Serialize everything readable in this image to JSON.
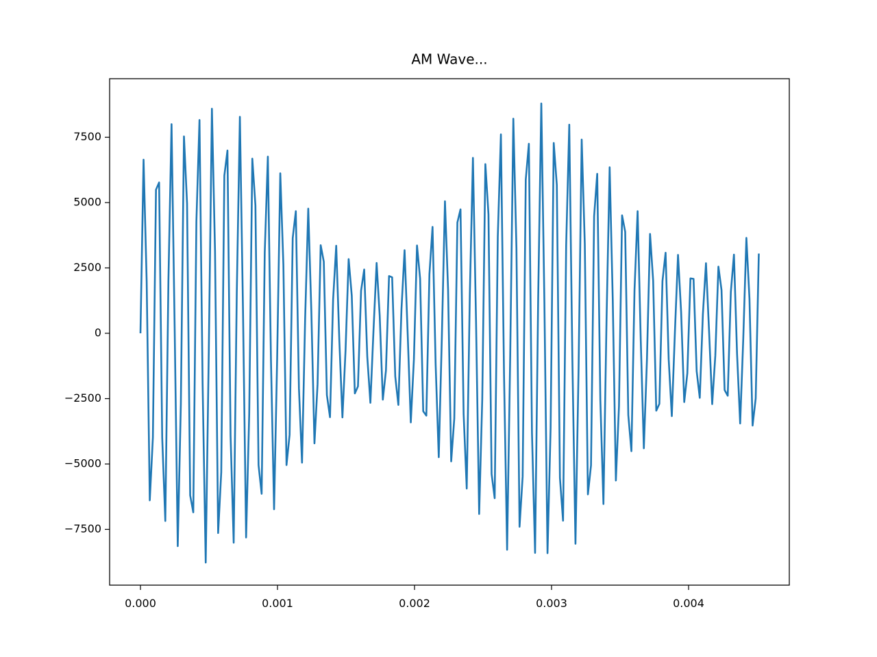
{
  "chart_data": {
    "type": "line",
    "title": "AM Wave...",
    "x": [
      0,
      2.27e-05,
      4.54e-05,
      6.8e-05,
      9.07e-05,
      0.0001134,
      0.0001361,
      0.0001587,
      0.0001814,
      0.0002041,
      0.0002268,
      0.0002494,
      0.0002721,
      0.0002948,
      0.0003175,
      0.0003401,
      0.0003628,
      0.0003855,
      0.0004082,
      0.0004308,
      0.0004535,
      0.0004762,
      0.0004989,
      0.0005215,
      0.0005442,
      0.0005669,
      0.0005896,
      0.0006122,
      0.0006349,
      0.0006576,
      0.0006803,
      0.0007029,
      0.0007256,
      0.0007483,
      0.000771,
      0.0007937,
      0.0008163,
      0.000839,
      0.0008617,
      0.0008844,
      0.000907,
      0.0009297,
      0.0009524,
      0.0009751,
      0.0009977,
      0.0010204,
      0.0010431,
      0.0010658,
      0.0010884,
      0.0011111,
      0.0011338,
      0.0011565,
      0.0011791,
      0.0012018,
      0.0012245,
      0.0012472,
      0.0012698,
      0.0012925,
      0.0013152,
      0.0013379,
      0.0013605,
      0.0013832,
      0.0014059,
      0.0014286,
      0.0014512,
      0.0014739,
      0.0014966,
      0.0015193,
      0.001542,
      0.0015646,
      0.0015873,
      0.00161,
      0.0016327,
      0.0016553,
      0.001678,
      0.0017007,
      0.0017234,
      0.001746,
      0.0017687,
      0.0017914,
      0.0018141,
      0.0018367,
      0.0018594,
      0.0018821,
      0.0019048,
      0.0019274,
      0.0019501,
      0.0019728,
      0.0019955,
      0.0020181,
      0.0020408,
      0.0020635,
      0.0020862,
      0.0021088,
      0.0021315,
      0.0021542,
      0.0021769,
      0.0021995,
      0.0022222,
      0.0022449,
      0.0022676,
      0.0022902,
      0.0023129,
      0.0023356,
      0.0023583,
      0.002381,
      0.0024036,
      0.0024263,
      0.002449,
      0.0024717,
      0.0024943,
      0.002517,
      0.0025397,
      0.0025624,
      0.002585,
      0.0026077,
      0.0026304,
      0.0026531,
      0.0026757,
      0.0026984,
      0.0027211,
      0.0027438,
      0.0027664,
      0.0027891,
      0.0028118,
      0.0028345,
      0.0028571,
      0.0028798,
      0.0029025,
      0.0029252,
      0.0029478,
      0.0029705,
      0.0029932,
      0.0030159,
      0.0030385,
      0.0030612,
      0.0030839,
      0.0031066,
      0.0031293,
      0.0031519,
      0.0031746,
      0.0031973,
      0.00322,
      0.0032426,
      0.0032653,
      0.003288,
      0.0033107,
      0.0033333,
      0.003356,
      0.0033787,
      0.0034014,
      0.003424,
      0.0034467,
      0.0034694,
      0.0034921,
      0.0035147,
      0.0035374,
      0.0035601,
      0.0035828,
      0.0036054,
      0.0036281,
      0.0036508,
      0.0036735,
      0.0036961,
      0.0037188,
      0.0037415,
      0.0037642,
      0.0037868,
      0.0038095,
      0.0038322,
      0.0038549,
      0.0038776,
      0.0039002,
      0.0039229,
      0.0039456,
      0.0039683,
      0.0039909,
      0.0040136,
      0.0040363,
      0.004059,
      0.0040816,
      0.0041043,
      0.004127,
      0.0041497,
      0.0041723,
      0.004195,
      0.0042177,
      0.0042404,
      0.004263,
      0.0042857,
      0.0043084,
      0.0043311,
      0.0043537,
      0.0043764,
      0.0043991,
      0.0044218,
      0.0044444,
      0.0044671,
      0.0044898,
      0.0045125
    ],
    "series": [
      {
        "color": "#1f77b4",
        "values": [
          0,
          6640,
          1980,
          -6390,
          -3980,
          5490,
          5770,
          -3990,
          -7180,
          2010,
          8000,
          290,
          -8140,
          -2700,
          7530,
          4960,
          -6200,
          -6850,
          4280,
          8160,
          -1920,
          -8770,
          -620,
          8590,
          3120,
          -7640,
          -5310,
          6030,
          6990,
          -3920,
          -8010,
          1540,
          8280,
          870,
          -7810,
          -3080,
          6680,
          4890,
          -5040,
          -6140,
          3090,
          6760,
          -1030,
          -6730,
          -930,
          6120,
          2610,
          -5040,
          -3880,
          3640,
          4670,
          -2100,
          -4950,
          560,
          4770,
          820,
          -4210,
          -1940,
          3370,
          2740,
          -2360,
          -3210,
          1290,
          3350,
          -260,
          -3220,
          -660,
          2840,
          1440,
          -2300,
          -2030,
          1630,
          2440,
          -900,
          -2660,
          120,
          2690,
          670,
          -2540,
          -1430,
          2190,
          2140,
          -1650,
          -2740,
          920,
          3180,
          -20,
          -3410,
          -1000,
          3360,
          2090,
          -2980,
          -3150,
          2260,
          4070,
          -1200,
          -4740,
          -140,
          5050,
          1670,
          -4900,
          -3260,
          4240,
          4740,
          -3080,
          -5940,
          1480,
          6710,
          440,
          -6910,
          -2520,
          6470,
          4550,
          -5380,
          -6310,
          3700,
          7610,
          -1560,
          -8280,
          -840,
          8210,
          3260,
          -7400,
          -5480,
          5880,
          7250,
          -3810,
          -8400,
          1370,
          8790,
          1190,
          -8410,
          -3620,
          7280,
          5670,
          -5530,
          -7170,
          3360,
          7980,
          -990,
          -8050,
          -1350,
          7410,
          3420,
          -6160,
          -5050,
          4480,
          6100,
          -2540,
          -6530,
          560,
          6350,
          1270,
          -5630,
          -2780,
          4510,
          3880,
          -3130,
          -4510,
          1650,
          4670,
          -230,
          -4400,
          -1020,
          3800,
          2010,
          -2960,
          -2700,
          2000,
          3080,
          -1000,
          -3170,
          40,
          3000,
          810,
          -2630,
          -1530,
          2100,
          2080,
          -1450,
          -2470,
          720,
          2680,
          60,
          -2710,
          -860,
          2550,
          1650,
          -2170,
          -2390,
          1580,
          3010,
          -780,
          -3450,
          -200,
          3650,
          1320,
          -3530,
          -2490,
          3050
        ]
      }
    ],
    "xlim": [
      -0.000225,
      0.004735
    ],
    "ylim": [
      -9634,
      9738
    ],
    "xticks": [
      {
        "value": 0,
        "label": "0.000"
      },
      {
        "value": 0.001,
        "label": "0.001"
      },
      {
        "value": 0.002,
        "label": "0.002"
      },
      {
        "value": 0.003,
        "label": "0.003"
      },
      {
        "value": 0.004,
        "label": "0.004"
      }
    ],
    "yticks": [
      {
        "value": -7500,
        "label": "−7500"
      },
      {
        "value": -5000,
        "label": "−5000"
      },
      {
        "value": -2500,
        "label": "−2500"
      },
      0,
      2500,
      5000,
      7500
    ]
  }
}
